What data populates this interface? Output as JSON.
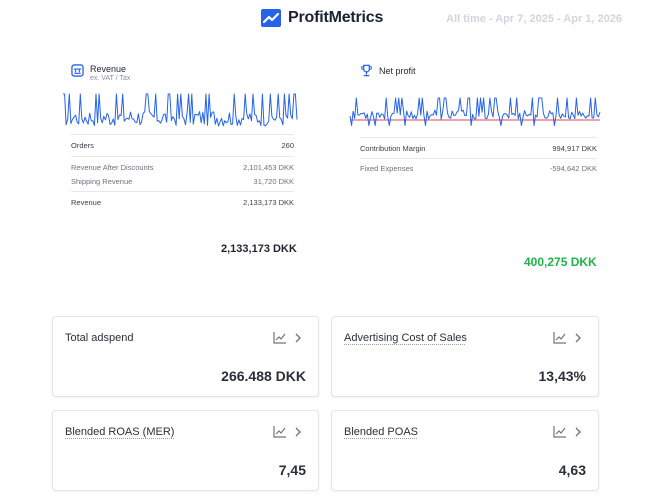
{
  "brand": {
    "name": "ProfitMetrics",
    "logo_icon": "trend-up-icon",
    "accent": "#2563eb"
  },
  "date_range": "All time - Apr 7, 2025 - Apr 1, 2026",
  "revenue_panel": {
    "title": "Revenue",
    "subtitle": "ex. VAT / Tax",
    "icon": "store-icon",
    "rows": [
      {
        "label": "Orders",
        "value": "260"
      },
      {
        "label": "Revenue After Discounts",
        "value": "2,101,453 DKK"
      },
      {
        "label": "Shipping Revenue",
        "value": "31,720 DKK"
      },
      {
        "label": "Revenue",
        "value": "2,133,173 DKK"
      }
    ],
    "total": "2,133,173 DKK"
  },
  "profit_panel": {
    "title": "Net profit",
    "icon": "trophy-icon",
    "rows": [
      {
        "label": "Contribution Margin",
        "value": "994,917 DKK"
      },
      {
        "label": "Fixed Expenses",
        "value": "-594,642 DKK"
      }
    ],
    "total": "400,275 DKK",
    "total_color": "#1fb34a"
  },
  "cards": [
    {
      "title": "Total adspend",
      "value": "266.488 DKK"
    },
    {
      "title": "Advertising Cost of Sales",
      "value": "13,43%"
    },
    {
      "title": "Blended ROAS (MER)",
      "value": "7,45"
    },
    {
      "title": "Blended POAS",
      "value": "4,63"
    }
  ]
}
